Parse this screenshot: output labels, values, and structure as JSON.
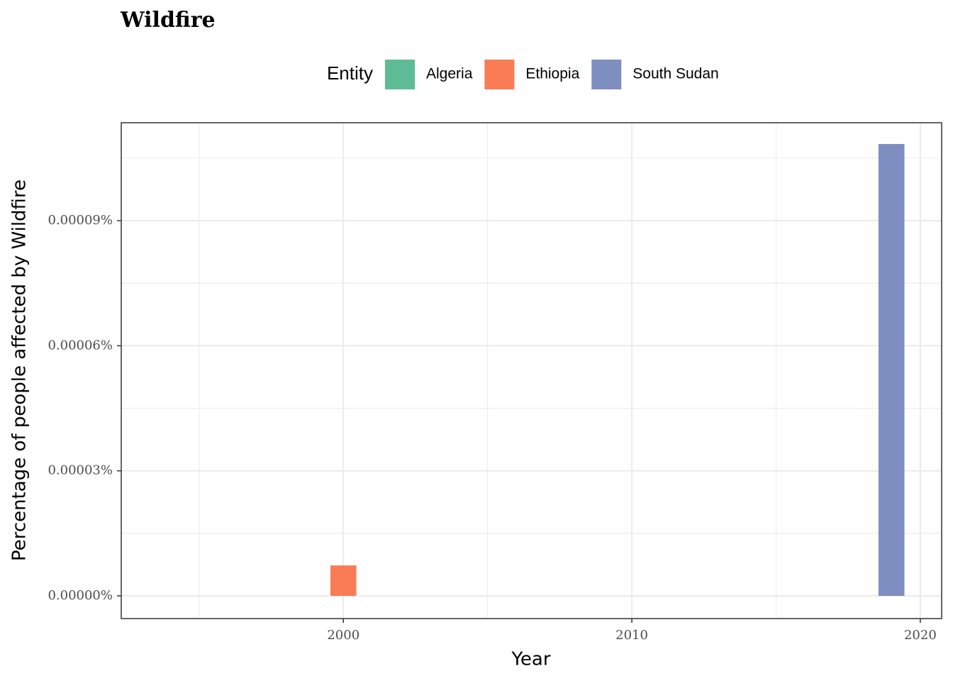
{
  "chart_data": {
    "type": "bar",
    "title": "Wildfire",
    "x_label": "Year",
    "y_label": "Percentage of people affected by Wildfire",
    "legend_title": "Entity",
    "x": [
      2000,
      2019
    ],
    "series": [
      {
        "name": "Algeria",
        "color": "#5dbb95",
        "values": [
          null,
          null
        ]
      },
      {
        "name": "Ethiopia",
        "color": "#f97c54",
        "values": [
          7.3e-06,
          null
        ]
      },
      {
        "name": "South Sudan",
        "color": "#7e8ec1",
        "values": [
          null,
          0.0001084
        ]
      }
    ],
    "xlim": [
      1992.3,
      2020.74
    ],
    "xticks": [
      2000,
      2010,
      2020
    ],
    "ylim": [
      -5.45e-06,
      0.0001135
    ],
    "yticks": [
      {
        "value": 0,
        "label": "0.00000%"
      },
      {
        "value": 3e-05,
        "label": "0.00003%"
      },
      {
        "value": 6e-05,
        "label": "0.00006%"
      },
      {
        "value": 9e-05,
        "label": "0.00009%"
      }
    ],
    "grid": true
  }
}
